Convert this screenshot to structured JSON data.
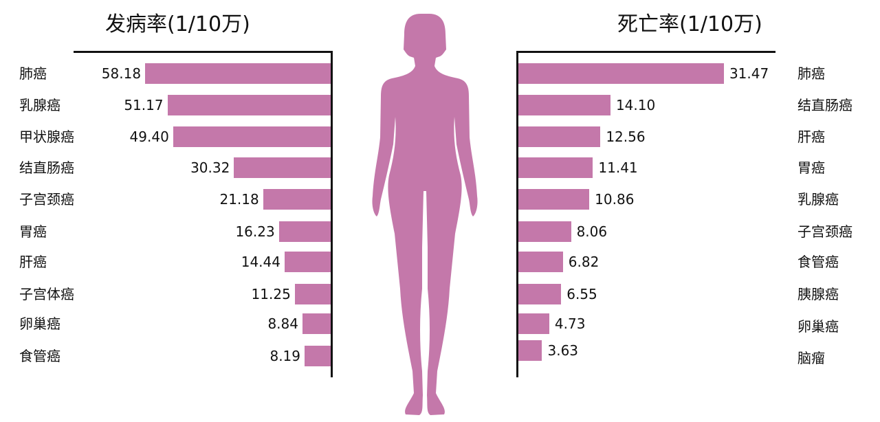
{
  "bar_color": "#c478aa",
  "axis_color": "#111111",
  "chart_data": [
    {
      "type": "bar",
      "orientation": "horizontal",
      "direction": "right-to-left",
      "title": "发病率(1/10万)",
      "categories": [
        "肺癌",
        "乳腺癌",
        "甲状腺癌",
        "结直肠癌",
        "子宫颈癌",
        "胃癌",
        "肝癌",
        "子宫体癌",
        "卵巢癌",
        "食管癌"
      ],
      "values": [
        58.18,
        51.17,
        49.4,
        30.32,
        21.18,
        16.23,
        14.44,
        11.25,
        8.84,
        8.19
      ],
      "labels": [
        "58.18",
        "51.17",
        "49.40",
        "30.32",
        "21.18",
        "16.23",
        "14.44",
        "11.25",
        "8.84",
        "8.19"
      ],
      "xlim": [
        0,
        80
      ],
      "grid": false
    },
    {
      "type": "bar",
      "orientation": "horizontal",
      "direction": "left-to-right",
      "title": "死亡率(1/10万)",
      "categories": [
        "肺癌",
        "结直肠癌",
        "肝癌",
        "胃癌",
        "乳腺癌",
        "子宫颈癌",
        "食管癌",
        "胰腺癌",
        "卵巢癌",
        "脑瘤"
      ],
      "values": [
        31.47,
        14.1,
        12.56,
        11.41,
        10.86,
        8.06,
        6.82,
        6.55,
        4.73,
        3.63
      ],
      "labels": [
        "31.47",
        "14.10",
        "12.56",
        "11.41",
        "10.86",
        "8.06",
        "6.82",
        "6.55",
        "4.73",
        "3.63"
      ],
      "xlim": [
        0,
        39.5
      ],
      "grid": false
    }
  ],
  "figure_icon": "female-body-silhouette-icon"
}
